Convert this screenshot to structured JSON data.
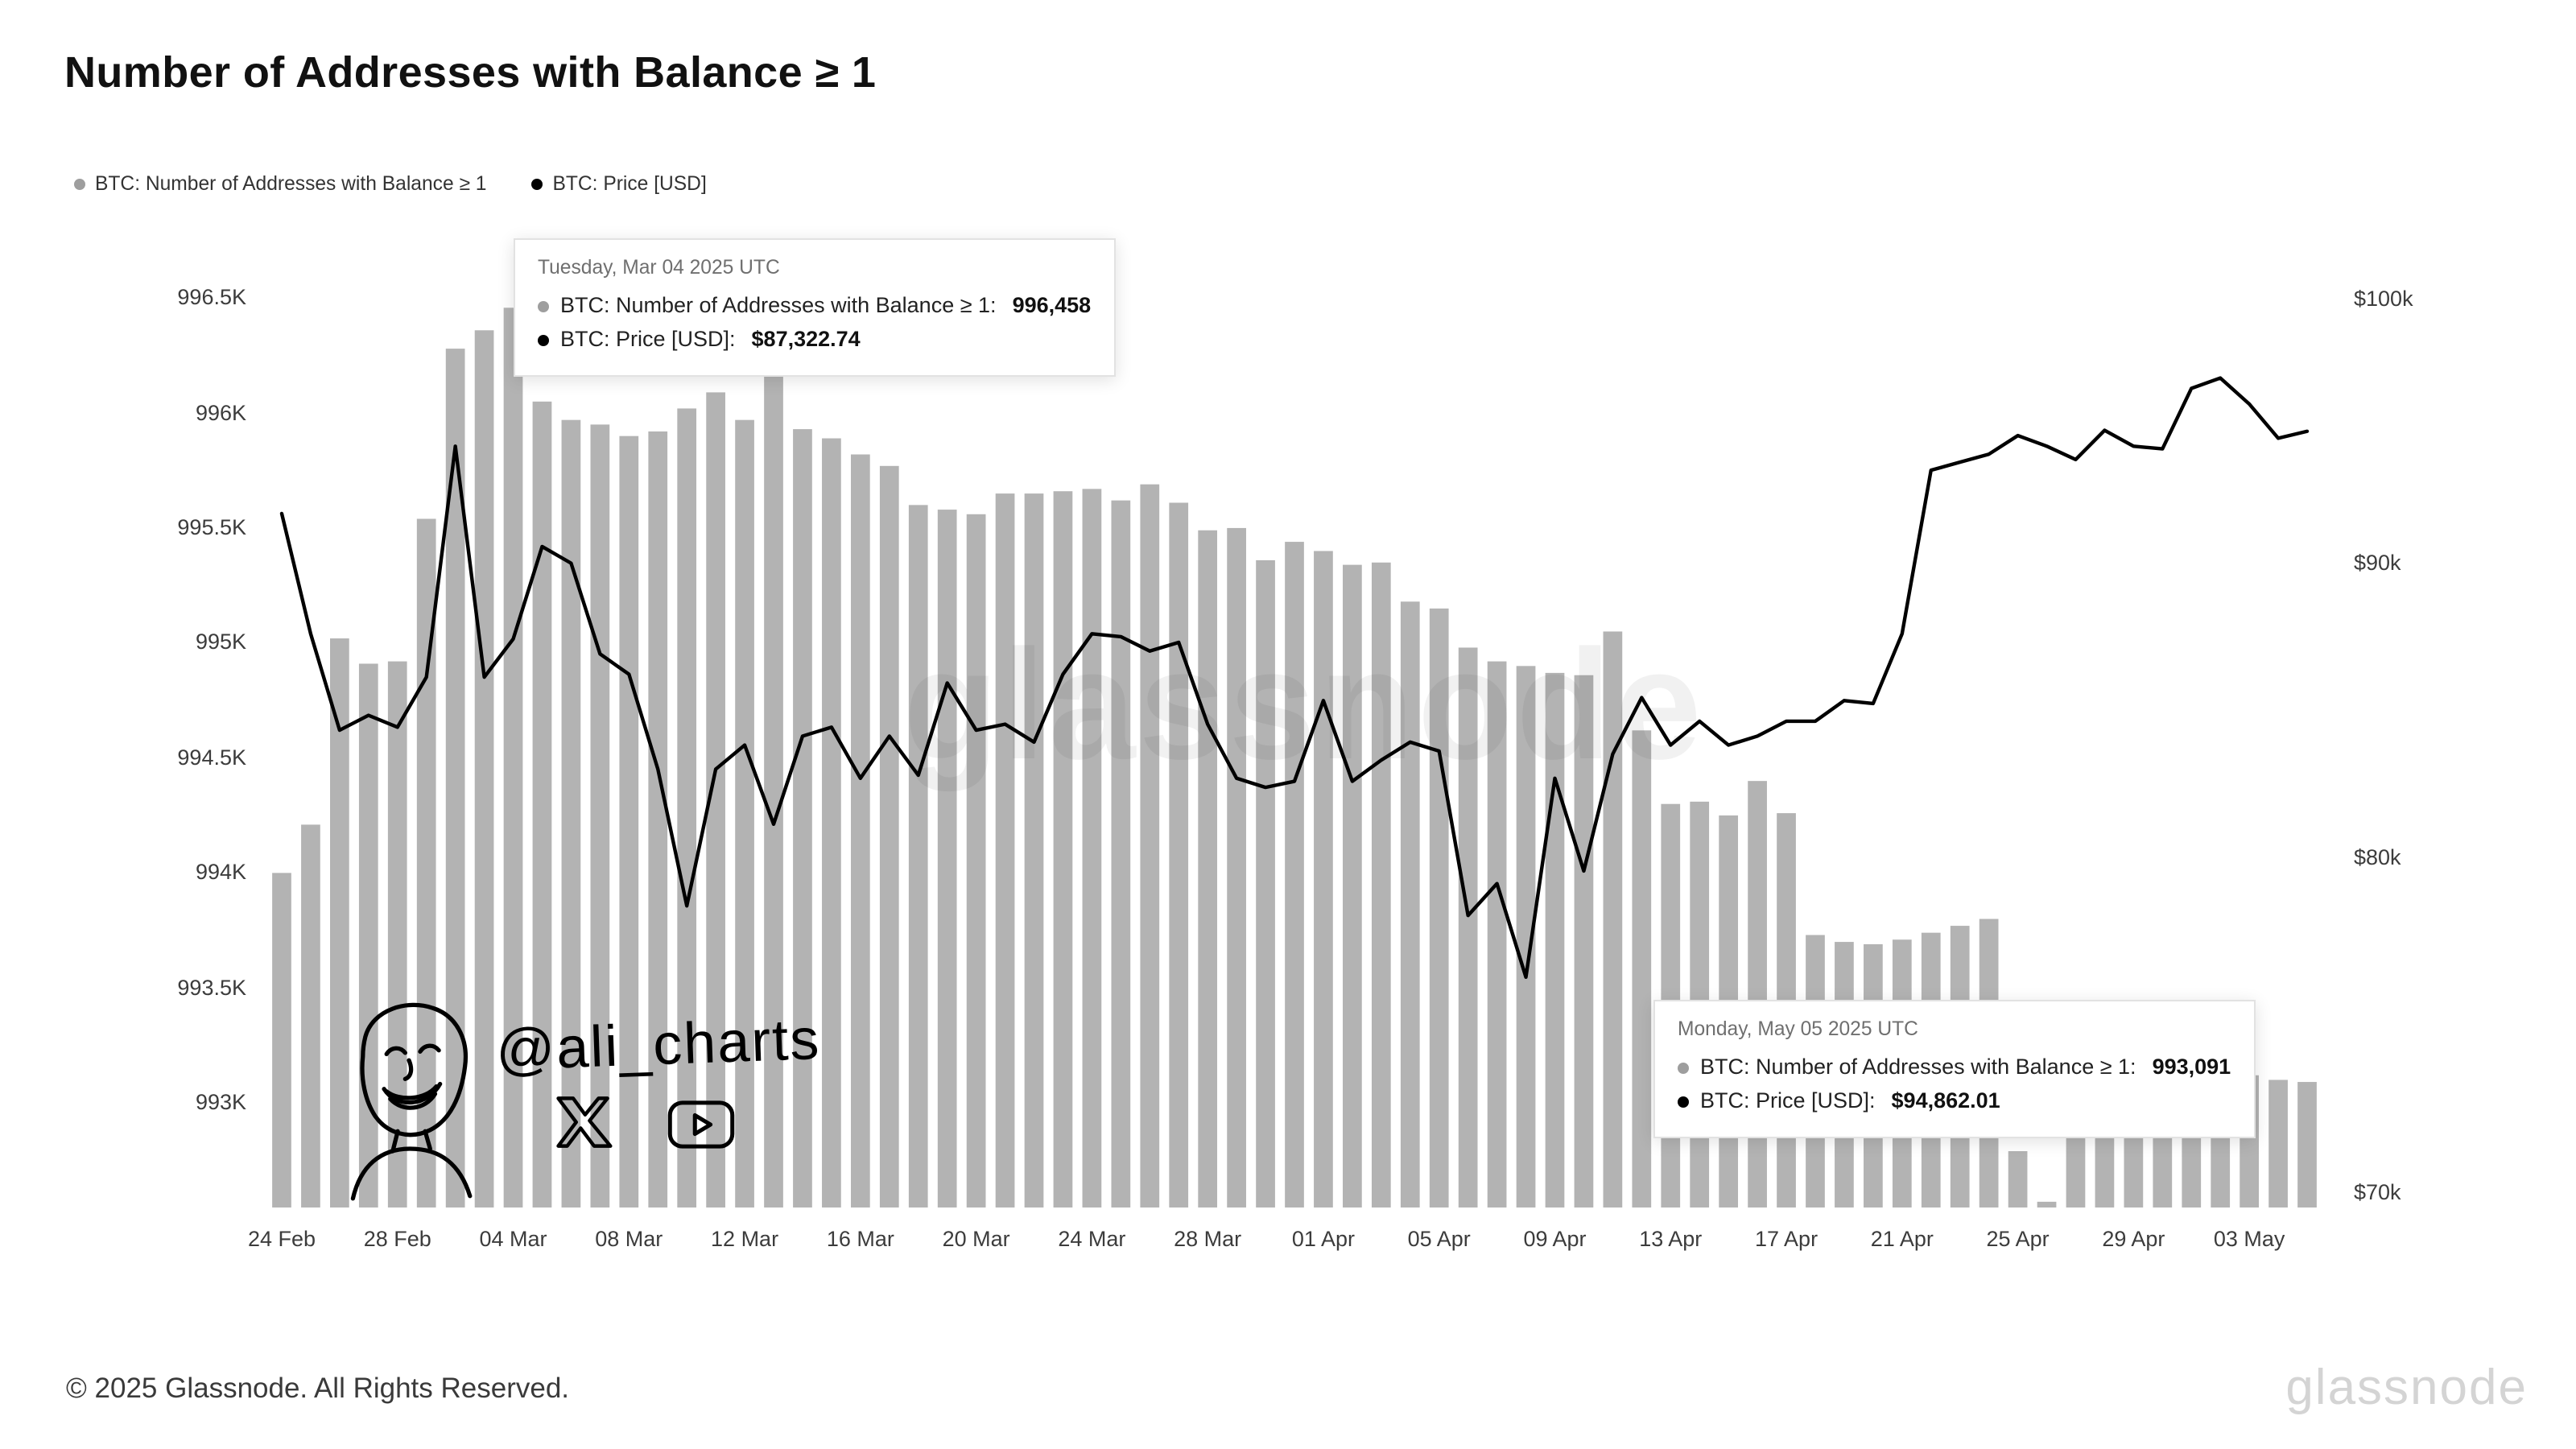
{
  "title": "Number of Addresses with Balance ≥ 1",
  "legend": [
    {
      "label": "BTC: Number of Addresses with Balance ≥ 1",
      "color": "#9e9e9e"
    },
    {
      "label": "BTC: Price [USD]",
      "color": "#000000"
    }
  ],
  "colors": {
    "bars": "#b3b3b3",
    "line": "#000000",
    "background": "#ffffff"
  },
  "tooltip_mar04": {
    "date": "Tuesday, Mar 04 2025 UTC",
    "rows": [
      {
        "label": "BTC: Number of Addresses with Balance ≥ 1:",
        "value": "996,458"
      },
      {
        "label": "BTC: Price [USD]:",
        "value": "$87,322.74"
      }
    ]
  },
  "tooltip_may05": {
    "date": "Monday, May 05 2025 UTC",
    "rows": [
      {
        "label": "BTC: Number of Addresses with Balance ≥ 1:",
        "value": "993,091"
      },
      {
        "label": "BTC: Price [USD]:",
        "value": "$94,862.01"
      }
    ]
  },
  "watermarks": {
    "center": "glassnode",
    "handle": "@ali_charts"
  },
  "footer": {
    "copyright": "© 2025 Glassnode. All Rights Reserved.",
    "logo": "glassnode"
  },
  "chart_data": {
    "type": "bar",
    "title": "Number of Addresses with Balance ≥ 1",
    "dates": [
      "2025-02-24",
      "2025-02-25",
      "2025-02-26",
      "2025-02-27",
      "2025-02-28",
      "2025-03-01",
      "2025-03-02",
      "2025-03-03",
      "2025-03-04",
      "2025-03-05",
      "2025-03-06",
      "2025-03-07",
      "2025-03-08",
      "2025-03-09",
      "2025-03-10",
      "2025-03-11",
      "2025-03-12",
      "2025-03-13",
      "2025-03-14",
      "2025-03-15",
      "2025-03-16",
      "2025-03-17",
      "2025-03-18",
      "2025-03-19",
      "2025-03-20",
      "2025-03-21",
      "2025-03-22",
      "2025-03-23",
      "2025-03-24",
      "2025-03-25",
      "2025-03-26",
      "2025-03-27",
      "2025-03-28",
      "2025-03-29",
      "2025-03-30",
      "2025-03-31",
      "2025-04-01",
      "2025-04-02",
      "2025-04-03",
      "2025-04-04",
      "2025-04-05",
      "2025-04-06",
      "2025-04-07",
      "2025-04-08",
      "2025-04-09",
      "2025-04-10",
      "2025-04-11",
      "2025-04-12",
      "2025-04-13",
      "2025-04-14",
      "2025-04-15",
      "2025-04-16",
      "2025-04-17",
      "2025-04-18",
      "2025-04-19",
      "2025-04-20",
      "2025-04-21",
      "2025-04-22",
      "2025-04-23",
      "2025-04-24",
      "2025-04-25",
      "2025-04-26",
      "2025-04-27",
      "2025-04-28",
      "2025-04-29",
      "2025-04-30",
      "2025-05-01",
      "2025-05-02",
      "2025-05-03",
      "2025-05-04",
      "2025-05-05"
    ],
    "series": [
      {
        "name": "BTC: Number of Addresses with Balance ≥ 1",
        "type": "bar",
        "axis": "left",
        "unit": "thousands of addresses",
        "values": [
          994.0,
          994.21,
          995.02,
          994.91,
          994.92,
          995.54,
          996.28,
          996.36,
          996.458,
          996.05,
          995.97,
          995.95,
          995.9,
          995.92,
          996.02,
          996.09,
          995.97,
          996.31,
          995.93,
          995.89,
          995.82,
          995.77,
          995.6,
          995.58,
          995.56,
          995.65,
          995.65,
          995.66,
          995.67,
          995.62,
          995.69,
          995.61,
          995.49,
          995.5,
          995.36,
          995.44,
          995.4,
          995.34,
          995.35,
          995.18,
          995.15,
          994.98,
          994.92,
          994.9,
          994.87,
          994.86,
          995.05,
          994.62,
          994.3,
          994.31,
          994.25,
          994.4,
          994.26,
          993.73,
          993.7,
          993.69,
          993.71,
          993.74,
          993.77,
          993.8,
          992.79,
          992.57,
          993.05,
          993.08,
          993.1,
          993.12,
          993.1,
          993.11,
          993.12,
          993.1,
          993.091
        ]
      },
      {
        "name": "BTC: Price [USD]",
        "type": "line",
        "axis": "right",
        "unit": "thousands of USD",
        "values": [
          91.8,
          87.5,
          84.2,
          84.7,
          84.3,
          86.0,
          94.3,
          86.0,
          87.32,
          90.6,
          90.0,
          86.8,
          86.1,
          82.9,
          78.5,
          82.9,
          83.7,
          81.1,
          84.0,
          84.3,
          82.6,
          84.0,
          82.7,
          85.8,
          84.2,
          84.4,
          83.8,
          86.1,
          87.5,
          87.4,
          86.9,
          87.2,
          84.4,
          82.6,
          82.3,
          82.5,
          85.2,
          82.5,
          83.2,
          83.8,
          83.5,
          78.2,
          79.2,
          76.3,
          82.6,
          79.6,
          83.4,
          85.3,
          83.7,
          84.5,
          83.7,
          84.0,
          84.5,
          84.5,
          85.2,
          85.1,
          87.5,
          93.4,
          93.7,
          94.0,
          94.7,
          94.3,
          93.8,
          94.9,
          94.3,
          94.2,
          96.5,
          96.9,
          95.9,
          94.6,
          94.862
        ]
      }
    ],
    "axes": {
      "left": {
        "scale": "linear",
        "min": 992.545,
        "max": 996.55,
        "ticks": [
          {
            "value": 996.5,
            "label": "996.5K"
          },
          {
            "value": 996.0,
            "label": "996K"
          },
          {
            "value": 995.5,
            "label": "995.5K"
          },
          {
            "value": 995.0,
            "label": "995K"
          },
          {
            "value": 994.5,
            "label": "994.5K"
          },
          {
            "value": 994.0,
            "label": "994K"
          },
          {
            "value": 993.5,
            "label": "993.5K"
          },
          {
            "value": 993.0,
            "label": "993K"
          }
        ]
      },
      "right": {
        "scale": "log",
        "min": 69.6,
        "max": 100.5,
        "ticks": [
          {
            "value": 100,
            "label": "$100k"
          },
          {
            "value": 90,
            "label": "$90k"
          },
          {
            "value": 80,
            "label": "$80k"
          },
          {
            "value": 70,
            "label": "$70k"
          }
        ]
      },
      "x": {
        "ticks": [
          {
            "index": 0,
            "label": "24 Feb"
          },
          {
            "index": 4,
            "label": "28 Feb"
          },
          {
            "index": 8,
            "label": "04 Mar"
          },
          {
            "index": 12,
            "label": "08 Mar"
          },
          {
            "index": 16,
            "label": "12 Mar"
          },
          {
            "index": 20,
            "label": "16 Mar"
          },
          {
            "index": 24,
            "label": "20 Mar"
          },
          {
            "index": 28,
            "label": "24 Mar"
          },
          {
            "index": 32,
            "label": "28 Mar"
          },
          {
            "index": 36,
            "label": "01 Apr"
          },
          {
            "index": 40,
            "label": "05 Apr"
          },
          {
            "index": 44,
            "label": "09 Apr"
          },
          {
            "index": 48,
            "label": "13 Apr"
          },
          {
            "index": 52,
            "label": "17 Apr"
          },
          {
            "index": 56,
            "label": "21 Apr"
          },
          {
            "index": 60,
            "label": "25 Apr"
          },
          {
            "index": 64,
            "label": "29 Apr"
          },
          {
            "index": 68,
            "label": "03 May"
          }
        ]
      }
    },
    "grid": false,
    "legend_position": "top-left"
  }
}
